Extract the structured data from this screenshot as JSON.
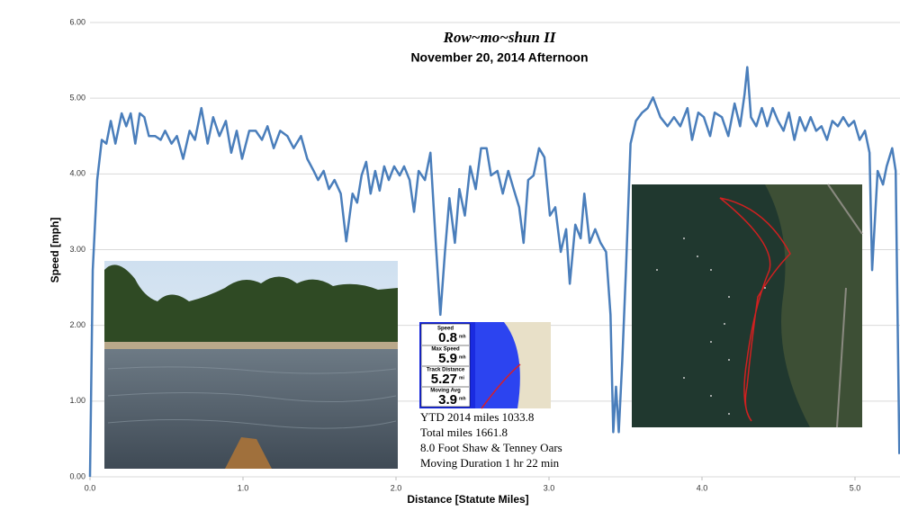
{
  "chart_data": {
    "type": "line",
    "title": "Row~mo~shun II",
    "subtitle": "November 20, 2014 Afternoon",
    "x_label": "Distance [Statute Miles]",
    "y_label": "Speed [mph]",
    "color": "#4a7ebb",
    "grid": true,
    "xlim": [
      0,
      5.3
    ],
    "ylim": [
      0,
      6
    ],
    "xticks": [
      {
        "value": 0,
        "label": "0.0"
      },
      {
        "value": 1,
        "label": "1.0"
      },
      {
        "value": 2,
        "label": "2.0"
      },
      {
        "value": 3,
        "label": "3.0"
      },
      {
        "value": 4,
        "label": "4.0"
      },
      {
        "value": 5,
        "label": "5.0"
      }
    ],
    "yticks": [
      {
        "value": 0,
        "label": "0.00"
      },
      {
        "value": 1,
        "label": "1.00"
      },
      {
        "value": 2,
        "label": "2.00"
      },
      {
        "value": 3,
        "label": "3.00"
      },
      {
        "value": 4,
        "label": "4.00"
      },
      {
        "value": 5,
        "label": "5.00"
      },
      {
        "value": 6,
        "label": "6.00"
      }
    ],
    "x": [
      0,
      0.018,
      0.047,
      0.077,
      0.107,
      0.136,
      0.166,
      0.207,
      0.237,
      0.266,
      0.296,
      0.325,
      0.355,
      0.385,
      0.426,
      0.462,
      0.491,
      0.533,
      0.568,
      0.609,
      0.651,
      0.686,
      0.728,
      0.769,
      0.805,
      0.846,
      0.888,
      0.923,
      0.959,
      0.994,
      1.041,
      1.083,
      1.124,
      1.16,
      1.201,
      1.243,
      1.29,
      1.331,
      1.379,
      1.42,
      1.462,
      1.491,
      1.527,
      1.562,
      1.598,
      1.639,
      1.675,
      1.716,
      1.746,
      1.775,
      1.805,
      1.834,
      1.864,
      1.893,
      1.923,
      1.953,
      1.988,
      2.024,
      2.053,
      2.089,
      2.118,
      2.148,
      2.189,
      2.225,
      2.26,
      2.29,
      2.32,
      2.349,
      2.385,
      2.414,
      2.45,
      2.485,
      2.521,
      2.556,
      2.592,
      2.621,
      2.663,
      2.698,
      2.734,
      2.769,
      2.805,
      2.834,
      2.864,
      2.899,
      2.935,
      2.97,
      3.006,
      3.041,
      3.077,
      3.112,
      3.136,
      3.172,
      3.207,
      3.231,
      3.266,
      3.302,
      3.337,
      3.373,
      3.402,
      3.42,
      3.438,
      3.456,
      3.479,
      3.503,
      3.533,
      3.568,
      3.609,
      3.645,
      3.68,
      3.728,
      3.775,
      3.817,
      3.858,
      3.905,
      3.935,
      3.976,
      4.012,
      4.053,
      4.083,
      4.13,
      4.172,
      4.213,
      4.249,
      4.278,
      4.296,
      4.32,
      4.355,
      4.391,
      4.426,
      4.462,
      4.497,
      4.533,
      4.568,
      4.604,
      4.639,
      4.675,
      4.71,
      4.746,
      4.781,
      4.817,
      4.852,
      4.888,
      4.923,
      4.959,
      4.994,
      5.03,
      5.065,
      5.095,
      5.112,
      5.148,
      5.183,
      5.207,
      5.243,
      5.266,
      5.29
    ],
    "values": [
      0,
      2.73,
      3.92,
      4.45,
      4.4,
      4.7,
      4.4,
      4.8,
      4.63,
      4.8,
      4.4,
      4.8,
      4.75,
      4.5,
      4.5,
      4.45,
      4.57,
      4.4,
      4.5,
      4.2,
      4.57,
      4.45,
      4.87,
      4.4,
      4.75,
      4.5,
      4.7,
      4.28,
      4.57,
      4.2,
      4.57,
      4.57,
      4.45,
      4.63,
      4.34,
      4.57,
      4.5,
      4.34,
      4.5,
      4.2,
      4.04,
      3.92,
      4.04,
      3.8,
      3.92,
      3.74,
      3.11,
      3.74,
      3.62,
      3.98,
      4.16,
      3.74,
      4.04,
      3.78,
      4.1,
      3.92,
      4.1,
      3.98,
      4.1,
      3.92,
      3.5,
      4.04,
      3.92,
      4.28,
      3.09,
      2.14,
      2.97,
      3.68,
      3.09,
      3.8,
      3.45,
      4.1,
      3.8,
      4.34,
      4.34,
      3.98,
      4.04,
      3.74,
      4.04,
      3.8,
      3.56,
      3.09,
      3.92,
      3.98,
      4.34,
      4.22,
      3.45,
      3.56,
      2.97,
      3.27,
      2.55,
      3.33,
      3.15,
      3.74,
      3.09,
      3.27,
      3.09,
      2.97,
      2.14,
      0.59,
      1.19,
      0.59,
      1.54,
      2.73,
      4.4,
      4.7,
      4.81,
      4.87,
      5.01,
      4.75,
      4.63,
      4.75,
      4.63,
      4.87,
      4.45,
      4.81,
      4.75,
      4.5,
      4.81,
      4.75,
      4.5,
      4.93,
      4.63,
      5.05,
      5.41,
      4.75,
      4.63,
      4.87,
      4.63,
      4.87,
      4.7,
      4.57,
      4.81,
      4.45,
      4.75,
      4.57,
      4.75,
      4.57,
      4.63,
      4.45,
      4.7,
      4.63,
      4.75,
      4.63,
      4.7,
      4.45,
      4.57,
      4.28,
      2.73,
      4.04,
      3.86,
      4.1,
      4.34,
      4.04,
      0.3
    ],
    "annotations": [
      "YTD 2014 miles  1033.8",
      "Total miles  1661.8",
      "8.0 Foot Shaw & Tenney Oars",
      "Moving Duration   1 hr 22 min"
    ],
    "gps_readout": [
      {
        "label": "Speed",
        "value": "0.8",
        "unit": "mh"
      },
      {
        "label": "Max Speed",
        "value": "5.9",
        "unit": "mh"
      },
      {
        "label": "Track Distance",
        "value": "5.27",
        "unit": "mi"
      },
      {
        "label": "Moving Avg",
        "value": "3.9",
        "unit": "mh"
      }
    ]
  }
}
